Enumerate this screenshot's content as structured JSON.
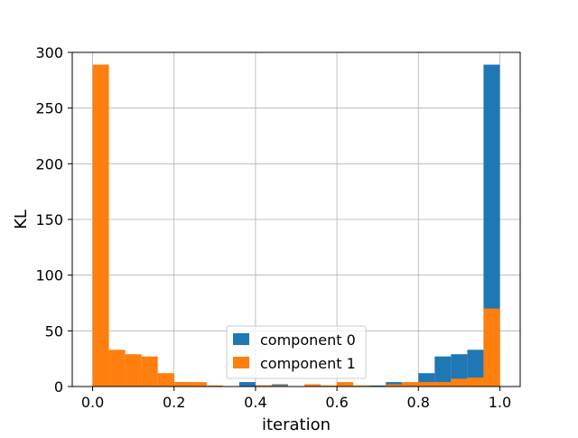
{
  "chart_data": {
    "type": "bar",
    "title": "",
    "xlabel": "iteration",
    "ylabel": "KL",
    "xlim": [
      -0.05,
      1.05
    ],
    "ylim": [
      0,
      300
    ],
    "xticks": [
      "0.0",
      "0.2",
      "0.4",
      "0.6",
      "0.8",
      "1.0"
    ],
    "yticks": [
      "0",
      "50",
      "100",
      "150",
      "200",
      "250",
      "300"
    ],
    "grid": true,
    "legend_position": "bottom-center",
    "bin_width": 0.04,
    "bin_starts": [
      0.0,
      0.04,
      0.08,
      0.12,
      0.16,
      0.2,
      0.24,
      0.28,
      0.32,
      0.36,
      0.4,
      0.44,
      0.48,
      0.52,
      0.56,
      0.6,
      0.64,
      0.68,
      0.72,
      0.76,
      0.8,
      0.84,
      0.88,
      0.92,
      0.96
    ],
    "series": [
      {
        "name": "component 0",
        "color": "#1f77b4",
        "values": [
          0,
          0,
          0,
          0,
          0,
          4,
          0,
          0,
          0,
          4,
          1,
          2,
          0,
          0,
          0,
          0,
          0,
          1,
          4,
          2,
          12,
          27,
          29,
          33,
          289
        ]
      },
      {
        "name": "component 1",
        "color": "#ff7f0e",
        "values": [
          289,
          33,
          29,
          27,
          12,
          4,
          4,
          1,
          0,
          0,
          1,
          1,
          0,
          2,
          1,
          4,
          1,
          0,
          2,
          4,
          4,
          4,
          7,
          8,
          70
        ]
      }
    ]
  }
}
